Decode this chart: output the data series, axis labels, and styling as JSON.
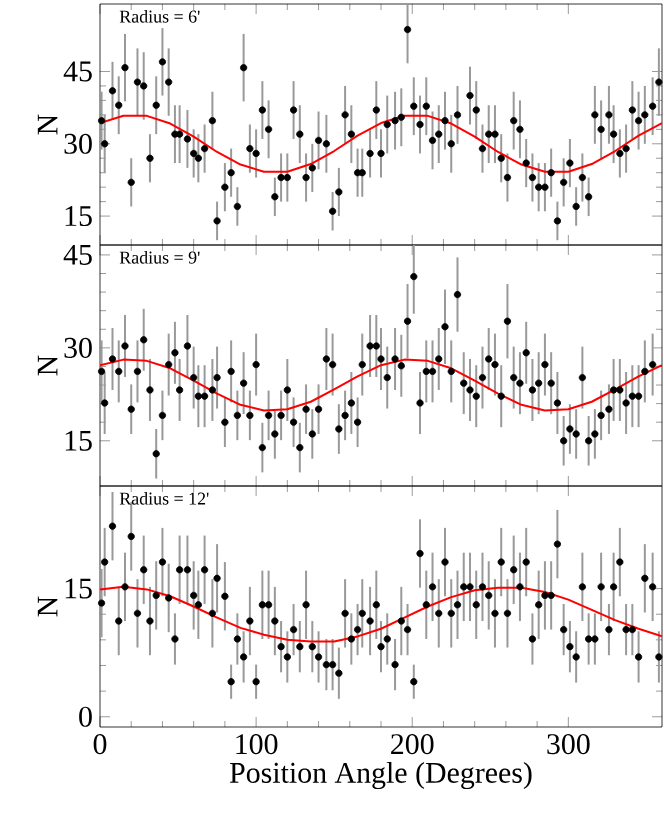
{
  "chart_data": [
    {
      "type": "scatter",
      "ylabel": "N",
      "annotations": [
        "Radius = 6'"
      ],
      "xlim": [
        0,
        360
      ],
      "xticks": [
        0,
        100,
        200,
        300
      ],
      "ylim": [
        9,
        59
      ],
      "yticks": [
        15,
        30,
        45
      ],
      "tick_labels": "y",
      "series": [
        {
          "color": "#000000",
          "marker": "circle",
          "x": [
            1,
            3,
            8,
            12,
            16,
            20,
            24,
            28,
            32,
            36,
            40,
            44,
            48,
            51,
            56,
            60,
            63,
            67,
            72,
            75,
            80,
            84,
            88,
            92,
            96,
            100,
            104,
            108,
            112,
            116,
            120,
            124,
            128,
            132,
            136,
            140,
            145,
            149,
            153,
            157,
            161,
            165,
            168,
            173,
            177,
            180,
            184,
            189,
            193,
            197,
            201,
            205,
            209,
            213,
            217,
            221,
            225,
            229,
            237,
            241,
            245,
            249,
            253,
            257,
            261,
            265,
            269,
            273,
            277,
            281,
            285,
            289,
            293,
            297,
            301,
            305,
            309,
            313,
            317,
            321,
            326,
            329,
            333,
            337,
            341,
            345,
            349,
            354,
            358
          ],
          "values": [
            34.8,
            30,
            41,
            38,
            45.8,
            22,
            42.8,
            42,
            27,
            38,
            47,
            42.8,
            32,
            32,
            31,
            28,
            27,
            29,
            34.8,
            14,
            21,
            24,
            17,
            45.8,
            29,
            28,
            37,
            33,
            19,
            23,
            23,
            37,
            32,
            23,
            25,
            30.7,
            30,
            16,
            20,
            36,
            32,
            24,
            24,
            28,
            37,
            28,
            34,
            34.8,
            35.5,
            53.7,
            37.8,
            34,
            37.8,
            30.7,
            32,
            34.8,
            30,
            36,
            40,
            37,
            29,
            32,
            32,
            27,
            23,
            34.8,
            33,
            26,
            23,
            21,
            21,
            24,
            14,
            22,
            26,
            17,
            23,
            19,
            36,
            33,
            36,
            32,
            28,
            29,
            37,
            34.8,
            36,
            37.8,
            42.8
          ],
          "errors": [
            6,
            6,
            6,
            6,
            7,
            5,
            7,
            7,
            5,
            6,
            7,
            7,
            6,
            6,
            6,
            5,
            5,
            5,
            6,
            4,
            5,
            5,
            4,
            7,
            5,
            5,
            6,
            6,
            4,
            5,
            5,
            6,
            6,
            5,
            5,
            6,
            6,
            4,
            5,
            6,
            6,
            5,
            5,
            5,
            6,
            5,
            6,
            6,
            6,
            7,
            6,
            6,
            6,
            6,
            6,
            6,
            6,
            6,
            6,
            6,
            5,
            6,
            6,
            5,
            5,
            6,
            6,
            5,
            5,
            5,
            5,
            5,
            4,
            5,
            5,
            4,
            5,
            4,
            6,
            6,
            6,
            6,
            5,
            5,
            6,
            6,
            6,
            6,
            7
          ]
        },
        {
          "type": "line",
          "color": "#ff0000",
          "marker": "none",
          "x": [
            0,
            15,
            30,
            45,
            60,
            75,
            90,
            105,
            120,
            135,
            150,
            165,
            180,
            195,
            210,
            225,
            240,
            255,
            270,
            285,
            300,
            315,
            330,
            345,
            360
          ],
          "values": [
            34.3,
            35.8,
            35.8,
            34.2,
            31.5,
            28.3,
            25.7,
            24.2,
            24.2,
            25.8,
            28.5,
            31.7,
            34.3,
            35.8,
            35.8,
            34.2,
            31.5,
            28.3,
            25.7,
            24.2,
            24.2,
            25.8,
            28.5,
            31.7,
            34.3
          ]
        }
      ]
    },
    {
      "type": "scatter",
      "ylabel": "N",
      "annotations": [
        "Radius = 9'"
      ],
      "xlim": [
        0,
        360
      ],
      "xticks": [
        0,
        100,
        200,
        300
      ],
      "ylim": [
        7.7,
        46.6
      ],
      "yticks": [
        15,
        30,
        45
      ],
      "tick_labels": "y",
      "series": [
        {
          "color": "#000000",
          "marker": "circle",
          "x": [
            1,
            3,
            8,
            12,
            16,
            20,
            24,
            28,
            32,
            36,
            40,
            44,
            48,
            51,
            56,
            60,
            63,
            67,
            72,
            75,
            80,
            84,
            88,
            92,
            96,
            100,
            104,
            108,
            112,
            116,
            120,
            124,
            128,
            132,
            136,
            140,
            145,
            149,
            153,
            157,
            161,
            165,
            168,
            173,
            177,
            180,
            184,
            189,
            193,
            197,
            201,
            205,
            209,
            213,
            217,
            221,
            225,
            229,
            233,
            237,
            241,
            245,
            249,
            253,
            257,
            261,
            265,
            269,
            273,
            277,
            281,
            285,
            289,
            293,
            297,
            301,
            305,
            309,
            313,
            317,
            321,
            326,
            329,
            333,
            337,
            341,
            345,
            349,
            354
          ],
          "values": [
            26.2,
            21.1,
            28.2,
            26.2,
            30.3,
            20.1,
            26.2,
            31.3,
            23.2,
            12.9,
            19.1,
            27.3,
            29.2,
            23.2,
            30.3,
            25.2,
            22.2,
            22.2,
            23.2,
            25.2,
            18,
            26.2,
            19.1,
            24.3,
            19.1,
            27.3,
            13.9,
            19.1,
            16.1,
            19.1,
            23.2,
            18,
            13.9,
            20.1,
            16.1,
            20.1,
            28.2,
            27.3,
            16.9,
            19.1,
            21.1,
            18,
            27.3,
            30.3,
            30.3,
            28.2,
            25.2,
            28.2,
            27.1,
            34.3,
            41.5,
            21.1,
            26.2,
            26.2,
            28.2,
            33.4,
            26.2,
            38.6,
            24.3,
            23.2,
            22.2,
            25.2,
            28.2,
            27.3,
            22.2,
            34.3,
            25.2,
            24.3,
            29.2,
            23.2,
            24.3,
            27.3,
            24.3,
            21.1,
            15,
            16.9,
            16.1,
            25.2,
            15,
            16.1,
            19.1,
            20.1,
            23.2,
            23.2,
            21.1,
            22.2,
            22.2,
            26.2,
            27.3
          ],
          "errors": [
            5,
            5,
            5,
            5,
            5,
            4,
            5,
            5,
            5,
            4,
            4,
            5,
            5,
            5,
            5,
            5,
            5,
            5,
            5,
            5,
            4,
            5,
            4,
            5,
            4,
            5,
            4,
            4,
            4,
            4,
            5,
            4,
            4,
            4,
            4,
            4,
            5,
            5,
            4,
            4,
            5,
            4,
            5,
            5,
            5,
            5,
            5,
            5,
            5,
            6,
            6,
            5,
            5,
            5,
            5,
            6,
            5,
            6,
            5,
            5,
            5,
            5,
            5,
            5,
            5,
            6,
            5,
            5,
            5,
            5,
            5,
            5,
            5,
            5,
            4,
            4,
            4,
            5,
            4,
            4,
            4,
            4,
            5,
            5,
            5,
            5,
            5,
            5,
            5
          ]
        },
        {
          "type": "line",
          "color": "#ff0000",
          "marker": "none",
          "x": [
            0,
            15,
            30,
            45,
            60,
            75,
            90,
            105,
            120,
            135,
            150,
            165,
            180,
            195,
            210,
            225,
            240,
            255,
            270,
            285,
            300,
            315,
            330,
            345,
            360
          ],
          "values": [
            27.2,
            28.1,
            27.9,
            26.7,
            24.7,
            22.6,
            20.8,
            19.9,
            20.1,
            21.3,
            23.3,
            25.4,
            27.2,
            28.1,
            27.9,
            26.7,
            24.7,
            22.6,
            20.8,
            19.9,
            20.1,
            21.3,
            23.3,
            25.4,
            27.2
          ]
        }
      ]
    },
    {
      "type": "scatter",
      "xlabel": "Position Angle (Degrees)",
      "ylabel": "N",
      "annotations": [
        "Radius = 12'"
      ],
      "xlim": [
        0,
        360
      ],
      "xticks": [
        0,
        100,
        200,
        300
      ],
      "ylim": [
        -1.2,
        27
      ],
      "yticks": [
        0,
        15
      ],
      "series": [
        {
          "color": "#000000",
          "marker": "circle",
          "x": [
            1,
            3,
            8,
            12,
            16,
            20,
            24,
            28,
            32,
            36,
            40,
            44,
            48,
            51,
            56,
            60,
            63,
            67,
            72,
            75,
            80,
            84,
            88,
            92,
            96,
            100,
            104,
            108,
            112,
            116,
            120,
            124,
            128,
            132,
            136,
            140,
            145,
            149,
            153,
            157,
            161,
            165,
            168,
            173,
            177,
            180,
            184,
            189,
            193,
            197,
            201,
            205,
            209,
            213,
            217,
            221,
            225,
            229,
            233,
            237,
            241,
            245,
            249,
            253,
            257,
            261,
            265,
            269,
            273,
            277,
            281,
            285,
            289,
            293,
            297,
            301,
            305,
            309,
            313,
            317,
            321,
            326,
            329,
            333,
            337,
            341,
            345,
            349,
            354,
            358
          ],
          "values": [
            13.3,
            18.1,
            22.3,
            11.2,
            15.2,
            21.1,
            12.1,
            17.2,
            11.2,
            14.2,
            18.1,
            13.9,
            9.1,
            17.2,
            17.2,
            14.2,
            13.1,
            17.2,
            12.1,
            16.2,
            14.1,
            4.1,
            9.1,
            7,
            11.2,
            4.1,
            13.1,
            13.1,
            11.2,
            8.2,
            7,
            10.2,
            8.2,
            13.1,
            8.2,
            7,
            6.1,
            6.1,
            5.1,
            12.1,
            9.1,
            10.2,
            12.1,
            11.2,
            13.1,
            8.2,
            9.1,
            6.1,
            11.2,
            10.2,
            4.1,
            19.1,
            13.1,
            15.2,
            12.1,
            18.1,
            12.1,
            13.1,
            15.2,
            15.2,
            13.1,
            15.2,
            14.2,
            12.1,
            18.1,
            12.1,
            17.2,
            15.2,
            18.1,
            9.1,
            13.1,
            14.2,
            14.2,
            20.2,
            10.2,
            8.2,
            7,
            15.2,
            9.1,
            9.1,
            15.2,
            10.2,
            15.2,
            18.1,
            10.2,
            10.2,
            7,
            16.2,
            15.2,
            7
          ],
          "errors": [
            4,
            4,
            4,
            4,
            4,
            4,
            4,
            4,
            4,
            4,
            4,
            4,
            3,
            4,
            4,
            4,
            4,
            4,
            4,
            4,
            4,
            2,
            3,
            3,
            4,
            2,
            4,
            4,
            4,
            3,
            3,
            3,
            3,
            4,
            3,
            3,
            3,
            3,
            3,
            4,
            3,
            3,
            4,
            4,
            4,
            3,
            3,
            3,
            4,
            3,
            2,
            4,
            4,
            4,
            4,
            4,
            4,
            4,
            4,
            4,
            4,
            4,
            4,
            4,
            4,
            4,
            4,
            4,
            4,
            3,
            4,
            4,
            4,
            4,
            3,
            3,
            3,
            4,
            3,
            3,
            4,
            3,
            4,
            4,
            3,
            3,
            3,
            4,
            4,
            3
          ]
        },
        {
          "type": "line",
          "color": "#ff0000",
          "marker": "none",
          "x": [
            0,
            15,
            30,
            45,
            60,
            75,
            90,
            105,
            120,
            135,
            150,
            165,
            180,
            195,
            210,
            225,
            240,
            255,
            270,
            285,
            300,
            315,
            330,
            345,
            360
          ],
          "values": [
            14.9,
            15.2,
            14.9,
            14.1,
            12.9,
            11.6,
            10.4,
            9.6,
            9,
            8.8,
            8.8,
            9.4,
            10.3,
            11.6,
            12.9,
            14,
            14.8,
            15.1,
            15.1,
            14.6,
            13.7,
            12.5,
            11.3,
            10.3,
            9.4
          ]
        }
      ]
    }
  ]
}
